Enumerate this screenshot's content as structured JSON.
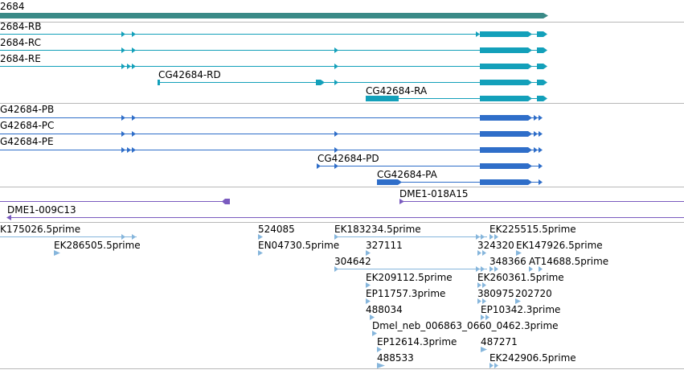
{
  "colors": {
    "gene": "#3a8a87",
    "transcript_r": "#13a0ba",
    "transcript_p": "#2f6ec9",
    "clone": "#7a5bbf",
    "est": "#86b6dc",
    "separator": "#b8b8b8"
  },
  "gene": {
    "label": "2684"
  },
  "transcripts_r": [
    {
      "label": "2684-RB"
    },
    {
      "label": "2684-RC"
    },
    {
      "label": "2684-RE"
    },
    {
      "label": "CG42684-RD"
    },
    {
      "label": "CG42684-RA"
    }
  ],
  "transcripts_p": [
    {
      "label": "G42684-PB"
    },
    {
      "label": "G42684-PC"
    },
    {
      "label": "G42684-PE"
    },
    {
      "label": "CG42684-PD"
    },
    {
      "label": "CG42684-PA"
    }
  ],
  "clones": [
    {
      "label": "DME1-018A15"
    },
    {
      "label": "DME1-009C13"
    }
  ],
  "ests": [
    {
      "label": "K175026.5prime"
    },
    {
      "label": "EK286505.5prime"
    },
    {
      "label": "524085"
    },
    {
      "label": "EN04730.5prime"
    },
    {
      "label": "EK183234.5prime"
    },
    {
      "label": "327111"
    },
    {
      "label": "304642"
    },
    {
      "label": "EK209112.5prime"
    },
    {
      "label": "EP11757.3prime"
    },
    {
      "label": "488034"
    },
    {
      "label": "Dmel_neb_006863_0660_0462.3prime"
    },
    {
      "label": "EP12614.3prime"
    },
    {
      "label": "488533"
    },
    {
      "label": "EK225515.5prime"
    },
    {
      "label": "324320"
    },
    {
      "label": "EK147926.5prime"
    },
    {
      "label": "348366"
    },
    {
      "label": "AT14688.5prime"
    },
    {
      "label": "EK260361.5prime"
    },
    {
      "label": "380975"
    },
    {
      "label": "202720"
    },
    {
      "label": "EP10342.3prime"
    },
    {
      "label": "487271"
    },
    {
      "label": "EK242906.5prime"
    }
  ]
}
